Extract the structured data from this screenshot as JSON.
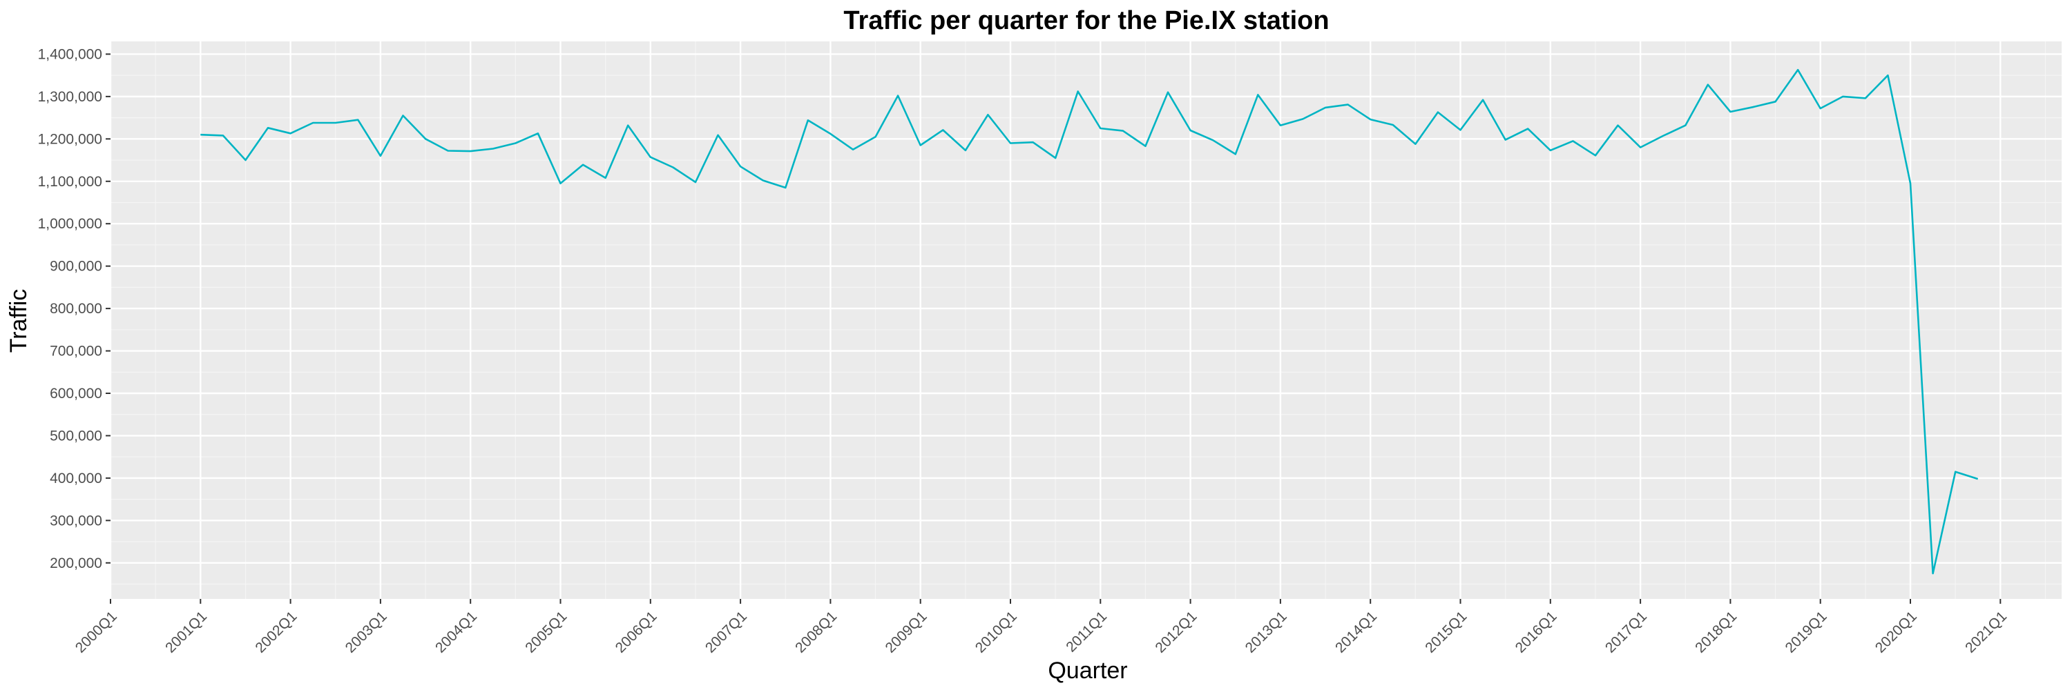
{
  "chart_data": {
    "type": "line",
    "title": "Traffic per quarter for the Pie.IX station",
    "xlabel": "Quarter",
    "ylabel": "Traffic",
    "x_tick_labels": [
      "2000Q1",
      "2001Q1",
      "2002Q1",
      "2003Q1",
      "2004Q1",
      "2005Q1",
      "2006Q1",
      "2007Q1",
      "2008Q1",
      "2009Q1",
      "2010Q1",
      "2011Q1",
      "2012Q1",
      "2013Q1",
      "2014Q1",
      "2015Q1",
      "2016Q1",
      "2017Q1",
      "2018Q1",
      "2019Q1",
      "2020Q1",
      "2021Q1"
    ],
    "y_tick_labels": [
      "200,000",
      "300,000",
      "400,000",
      "500,000",
      "600,000",
      "700,000",
      "800,000",
      "900,000",
      "1,000,000",
      "1,100,000",
      "1,200,000",
      "1,300,000",
      "1,400,000"
    ],
    "y_ticks": [
      200000,
      300000,
      400000,
      500000,
      600000,
      700000,
      800000,
      900000,
      1000000,
      1100000,
      1200000,
      1300000,
      1400000
    ],
    "xlim": [
      "2000Q1",
      "2021Q1"
    ],
    "ylim": [
      115000,
      1430000
    ],
    "grid": true,
    "legend": "none",
    "series": [
      {
        "color": "#00b4c3",
        "x": [
          "2001Q1",
          "2001Q2",
          "2001Q3",
          "2001Q4",
          "2002Q1",
          "2002Q2",
          "2002Q3",
          "2002Q4",
          "2003Q1",
          "2003Q2",
          "2003Q3",
          "2003Q4",
          "2004Q1",
          "2004Q2",
          "2004Q3",
          "2004Q4",
          "2005Q1",
          "2005Q2",
          "2005Q3",
          "2005Q4",
          "2006Q1",
          "2006Q2",
          "2006Q3",
          "2006Q4",
          "2007Q1",
          "2007Q2",
          "2007Q3",
          "2007Q4",
          "2008Q1",
          "2008Q2",
          "2008Q3",
          "2008Q4",
          "2009Q1",
          "2009Q2",
          "2009Q3",
          "2009Q4",
          "2010Q1",
          "2010Q2",
          "2010Q3",
          "2010Q4",
          "2011Q1",
          "2011Q2",
          "2011Q3",
          "2011Q4",
          "2012Q1",
          "2012Q2",
          "2012Q3",
          "2012Q4",
          "2013Q1",
          "2013Q2",
          "2013Q3",
          "2013Q4",
          "2014Q1",
          "2014Q2",
          "2014Q3",
          "2014Q4",
          "2015Q1",
          "2015Q2",
          "2015Q3",
          "2015Q4",
          "2016Q1",
          "2016Q2",
          "2016Q3",
          "2016Q4",
          "2017Q1",
          "2017Q2",
          "2017Q3",
          "2017Q4",
          "2018Q1",
          "2018Q2",
          "2018Q3",
          "2018Q4",
          "2019Q1",
          "2019Q2",
          "2019Q3",
          "2019Q4",
          "2020Q1",
          "2020Q2",
          "2020Q3",
          "2020Q4"
        ],
        "values": [
          1210000,
          1208000,
          1150000,
          1226000,
          1213000,
          1238000,
          1238000,
          1245000,
          1160000,
          1255000,
          1200000,
          1172000,
          1171000,
          1177000,
          1190000,
          1213000,
          1095000,
          1139000,
          1108000,
          1232000,
          1157000,
          1133000,
          1098000,
          1209000,
          1135000,
          1102000,
          1085000,
          1244000,
          1212000,
          1175000,
          1205000,
          1302000,
          1185000,
          1221000,
          1173000,
          1257000,
          1190000,
          1192000,
          1155000,
          1312000,
          1225000,
          1219000,
          1183000,
          1310000,
          1220000,
          1197000,
          1164000,
          1304000,
          1232000,
          1247000,
          1274000,
          1281000,
          1246000,
          1233000,
          1188000,
          1263000,
          1221000,
          1292000,
          1198000,
          1224000,
          1173000,
          1195000,
          1161000,
          1232000,
          1180000,
          1207000,
          1232000,
          1328000,
          1264000,
          1275000,
          1288000,
          1363000,
          1272000,
          1300000,
          1296000,
          1350000,
          1095000,
          175000,
          415000,
          398000
        ]
      }
    ]
  }
}
